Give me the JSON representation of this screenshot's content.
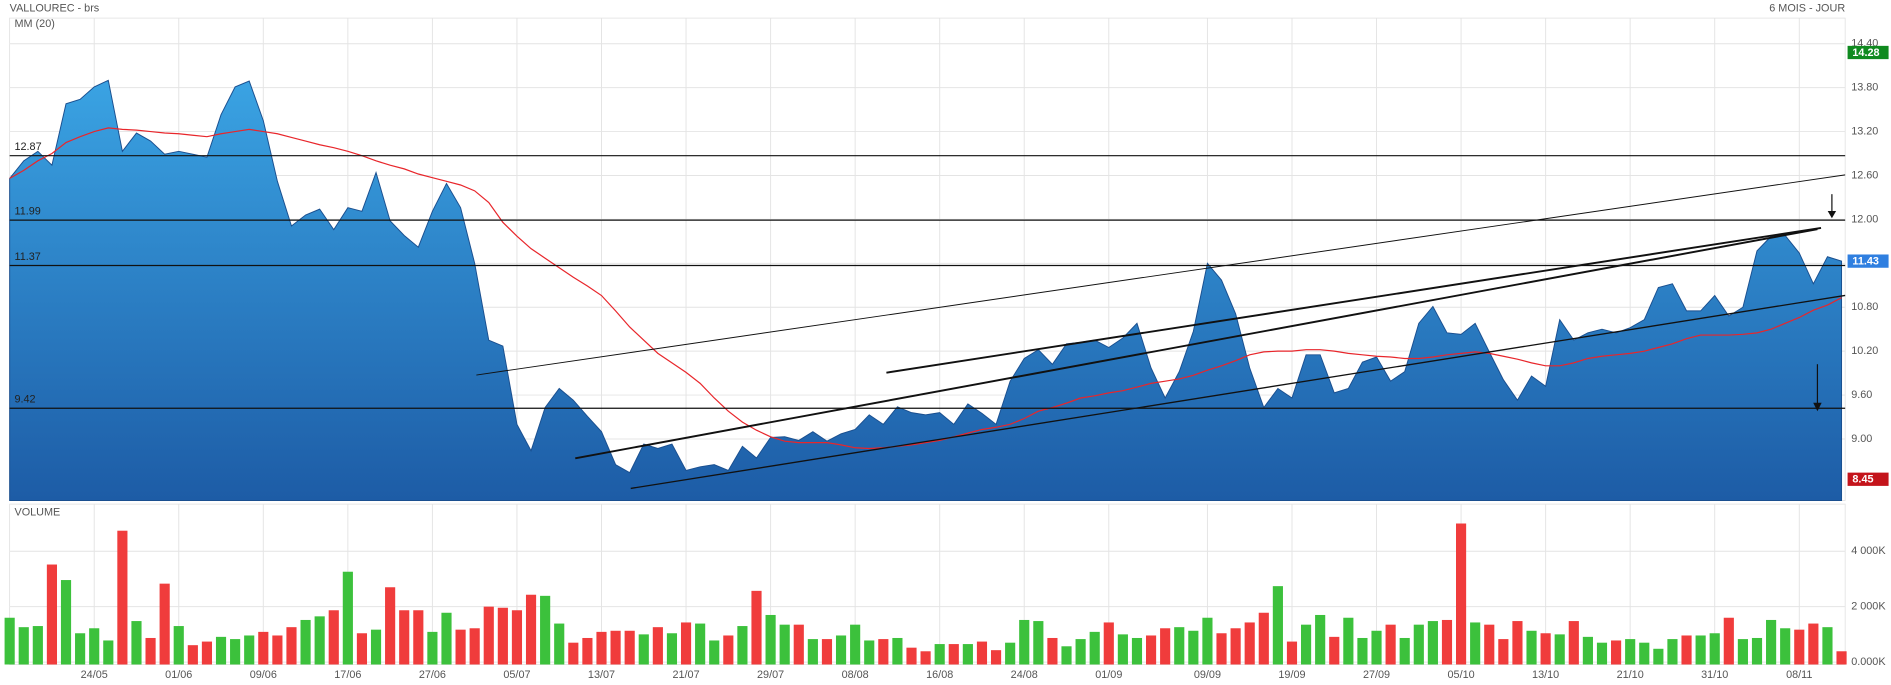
{
  "chart_data": [
    {
      "type": "area",
      "title": "VALLOUREC - brs",
      "subtitle": "6 MOIS - JOUR",
      "series": [
        {
          "color": "#3aa3e3",
          "fill_bottom": "#1d5ca6",
          "line_color": "#1a4f8f",
          "values": [
            12.56,
            12.8,
            12.93,
            12.74,
            13.58,
            13.64,
            13.81,
            13.9,
            12.93,
            13.18,
            13.07,
            12.89,
            12.93,
            12.89,
            12.85,
            13.43,
            13.81,
            13.89,
            13.35,
            12.52,
            11.91,
            12.06,
            12.14,
            11.86,
            12.16,
            12.11,
            12.64,
            11.98,
            11.78,
            11.62,
            12.11,
            12.49,
            12.16,
            11.4,
            10.35,
            10.27,
            9.2,
            8.84,
            9.43,
            9.69,
            9.53,
            9.31,
            9.1,
            8.65,
            8.54,
            8.93,
            8.87,
            8.93,
            8.57,
            8.62,
            8.65,
            8.57,
            8.9,
            8.74,
            9.02,
            9.03,
            8.98,
            9.1,
            8.97,
            9.07,
            9.13,
            9.33,
            9.2,
            9.44,
            9.36,
            9.33,
            9.36,
            9.2,
            9.48,
            9.35,
            9.2,
            9.79,
            10.1,
            10.22,
            10.02,
            10.3,
            10.32,
            10.35,
            10.25,
            10.38,
            10.58,
            9.97,
            9.56,
            9.92,
            10.47,
            11.4,
            11.17,
            10.71,
            9.97,
            9.43,
            9.69,
            9.56,
            10.15,
            10.15,
            9.63,
            9.69,
            10.05,
            10.12,
            9.79,
            9.92,
            10.58,
            10.81,
            10.45,
            10.43,
            10.58,
            10.19,
            9.81,
            9.53,
            9.86,
            9.72,
            10.63,
            10.35,
            10.45,
            10.5,
            10.45,
            10.52,
            10.63,
            11.07,
            11.12,
            10.75,
            10.75,
            10.96,
            10.68,
            10.8,
            11.57,
            11.77,
            11.78,
            11.54,
            11.12,
            11.49,
            11.43
          ]
        },
        {
          "name": "MM (20)",
          "color": "#e8262b",
          "values": [
            12.56,
            12.67,
            12.8,
            12.9,
            13.05,
            13.13,
            13.2,
            13.25,
            13.23,
            13.22,
            13.2,
            13.18,
            13.17,
            13.15,
            13.13,
            13.17,
            13.2,
            13.23,
            13.2,
            13.17,
            13.12,
            13.07,
            13.02,
            12.98,
            12.93,
            12.87,
            12.8,
            12.74,
            12.69,
            12.62,
            12.57,
            12.52,
            12.47,
            12.39,
            12.23,
            11.96,
            11.77,
            11.6,
            11.47,
            11.34,
            11.21,
            11.09,
            10.96,
            10.75,
            10.53,
            10.35,
            10.17,
            10.04,
            9.91,
            9.76,
            9.56,
            9.38,
            9.23,
            9.12,
            9.03,
            8.97,
            8.95,
            8.95,
            8.95,
            8.92,
            8.88,
            8.87,
            8.88,
            8.9,
            8.92,
            8.95,
            8.98,
            9.03,
            9.08,
            9.13,
            9.16,
            9.2,
            9.28,
            9.38,
            9.43,
            9.49,
            9.56,
            9.59,
            9.63,
            9.66,
            9.71,
            9.76,
            9.79,
            9.82,
            9.87,
            9.94,
            10.0,
            10.07,
            10.15,
            10.19,
            10.2,
            10.2,
            10.22,
            10.22,
            10.2,
            10.17,
            10.15,
            10.13,
            10.12,
            10.1,
            10.1,
            10.12,
            10.15,
            10.17,
            10.19,
            10.17,
            10.13,
            10.09,
            10.04,
            10.0,
            10.0,
            10.04,
            10.1,
            10.13,
            10.15,
            10.17,
            10.2,
            10.25,
            10.3,
            10.37,
            10.42,
            10.42,
            10.42,
            10.43,
            10.45,
            10.5,
            10.58,
            10.66,
            10.76,
            10.83,
            10.93
          ]
        }
      ],
      "ylim": [
        8.16,
        14.75
      ],
      "yticks": [
        {
          "value": 9,
          "label": "9.00"
        },
        {
          "value": 9.6,
          "label": "9.60"
        },
        {
          "value": 10.2,
          "label": "10.20"
        },
        {
          "value": 10.8,
          "label": "10.80"
        },
        {
          "value": 11.4,
          "label": "11.40"
        },
        {
          "value": 12,
          "label": "12.00"
        },
        {
          "value": 12.6,
          "label": "12.60"
        },
        {
          "value": 13.2,
          "label": "13.20"
        },
        {
          "value": 13.8,
          "label": "13.80"
        },
        {
          "value": 14.4,
          "label": "14.40"
        }
      ],
      "levels": [
        12.87,
        11.99,
        11.37,
        9.42
      ],
      "badges": [
        {
          "value": 14.28,
          "color": "#0f8a1f"
        },
        {
          "value": 11.43,
          "color": "#2f7fe0"
        },
        {
          "value": 8.45,
          "color": "#c4141b"
        }
      ],
      "grid": true
    },
    {
      "type": "bar",
      "title": "VOLUME",
      "title_color": "#3cb83c",
      "categories": [
        null,
        null,
        null,
        null,
        null,
        null,
        "24/05",
        null,
        null,
        null,
        null,
        null,
        "01/06",
        null,
        null,
        null,
        null,
        null,
        "09/06",
        null,
        null,
        null,
        null,
        null,
        "17/06",
        null,
        null,
        null,
        null,
        null,
        "27/06",
        null,
        null,
        null,
        null,
        null,
        "05/07",
        null,
        null,
        null,
        null,
        null,
        "13/07",
        null,
        null,
        null,
        null,
        null,
        "21/07",
        null,
        null,
        null,
        null,
        null,
        "29/07",
        null,
        null,
        null,
        null,
        null,
        "08/08",
        null,
        null,
        null,
        null,
        null,
        "16/08",
        null,
        null,
        null,
        null,
        null,
        "24/08",
        null,
        null,
        null,
        null,
        null,
        "01/09",
        null,
        null,
        null,
        null,
        null,
        null,
        "09/09",
        null,
        null,
        null,
        null,
        null,
        "19/09",
        null,
        null,
        null,
        null,
        null,
        "27/09",
        null,
        null,
        null,
        null,
        null,
        "05/10",
        null,
        null,
        null,
        null,
        null,
        "13/10",
        null,
        null,
        null,
        null,
        null,
        "21/10",
        null,
        null,
        null,
        null,
        null,
        "31/10",
        null,
        null,
        null,
        null,
        null,
        "08/11",
        null,
        null,
        null
      ],
      "values": [
        1600,
        1260,
        1300,
        3520,
        2960,
        1040,
        1220,
        780,
        4740,
        1480,
        870,
        2830,
        1300,
        610,
        740,
        910,
        830,
        960,
        1090,
        960,
        1260,
        1520,
        1650,
        1870,
        3260,
        1040,
        1170,
        2700,
        1870,
        1870,
        1090,
        1780,
        1170,
        1220,
        2000,
        1960,
        1870,
        2430,
        2390,
        1390,
        700,
        870,
        1090,
        1130,
        1130,
        1000,
        1260,
        1040,
        1430,
        1390,
        780,
        960,
        1300,
        2570,
        1700,
        1350,
        1350,
        830,
        830,
        960,
        1350,
        780,
        830,
        870,
        520,
        390,
        650,
        650,
        650,
        740,
        430,
        700,
        1520,
        1480,
        870,
        570,
        830,
        1090,
        1430,
        1000,
        870,
        960,
        1220,
        1260,
        1130,
        1600,
        1040,
        1220,
        1430,
        1780,
        2740,
        740,
        1350,
        1700,
        910,
        1600,
        870,
        1130,
        1350,
        870,
        1350,
        1480,
        1520,
        5000,
        1430,
        1350,
        830,
        1480,
        1130,
        1040,
        1000,
        1480,
        910,
        700,
        780,
        830,
        700,
        480,
        830,
        960,
        960,
        1040,
        1600,
        830,
        870,
        1520,
        1220,
        1170,
        1390,
        1260,
        390
      ],
      "up_color": "#3cc13c",
      "down_color": "#f03c3c",
      "ylim": [
        0,
        5700
      ],
      "yticks": [
        {
          "value": 0,
          "label": "0.000K"
        },
        {
          "value": 2000,
          "label": "2 000K"
        },
        {
          "value": 4000,
          "label": "4 000K"
        }
      ],
      "grid": true
    }
  ]
}
